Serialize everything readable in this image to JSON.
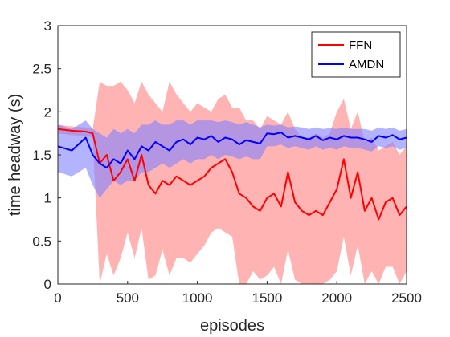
{
  "chart_data": {
    "type": "line",
    "title": "",
    "xlabel": "episodes",
    "ylabel": "time headway (s)",
    "xlim": [
      0,
      2500
    ],
    "ylim": [
      0,
      3
    ],
    "xticks": [
      0,
      500,
      1000,
      1500,
      2000,
      2500
    ],
    "yticks": [
      0,
      0.5,
      1,
      1.5,
      2,
      2.5,
      3
    ],
    "ytick_labels": [
      "0",
      "0.5",
      "1",
      "1.5",
      "2",
      "2.5",
      "3"
    ],
    "grid": false,
    "legend_position": "top-right",
    "series": [
      {
        "name": "FFN",
        "color": "#ff0000",
        "band_color": "#ff9999",
        "x": [
          0,
          100,
          200,
          250,
          300,
          350,
          400,
          450,
          500,
          550,
          600,
          650,
          700,
          750,
          800,
          850,
          900,
          950,
          1000,
          1050,
          1100,
          1150,
          1200,
          1250,
          1300,
          1350,
          1400,
          1450,
          1500,
          1550,
          1600,
          1650,
          1700,
          1750,
          1800,
          1850,
          1900,
          1950,
          2000,
          2050,
          2100,
          2150,
          2200,
          2250,
          2300,
          2350,
          2400,
          2450,
          2500
        ],
        "y": [
          1.8,
          1.78,
          1.77,
          1.75,
          1.4,
          1.5,
          1.2,
          1.3,
          1.45,
          1.2,
          1.5,
          1.15,
          1.05,
          1.2,
          1.15,
          1.25,
          1.2,
          1.15,
          1.2,
          1.25,
          1.35,
          1.4,
          1.45,
          1.3,
          1.05,
          1.0,
          0.9,
          0.85,
          1.0,
          1.05,
          0.9,
          1.3,
          0.95,
          0.85,
          0.8,
          0.85,
          0.8,
          0.95,
          1.1,
          1.45,
          1.0,
          1.3,
          0.85,
          1.0,
          0.75,
          0.95,
          1.0,
          0.8,
          0.9
        ],
        "upper": [
          1.85,
          1.83,
          1.82,
          1.8,
          2.35,
          2.3,
          2.3,
          2.35,
          2.25,
          2.1,
          2.35,
          2.2,
          2.1,
          2.0,
          2.35,
          2.2,
          2.1,
          2.0,
          2.1,
          2.05,
          2.0,
          2.15,
          2.2,
          2.05,
          2.05,
          1.9,
          1.9,
          1.8,
          1.95,
          1.9,
          1.85,
          2.0,
          1.8,
          1.7,
          1.7,
          1.75,
          1.7,
          1.75,
          2.0,
          2.15,
          1.8,
          2.0,
          1.65,
          1.7,
          1.55,
          1.6,
          1.65,
          1.5,
          1.6
        ],
        "lower": [
          1.75,
          1.73,
          1.72,
          1.7,
          0.0,
          0.35,
          0.1,
          0.3,
          0.6,
          0.3,
          0.65,
          0.05,
          0.1,
          0.4,
          0.1,
          0.3,
          0.3,
          0.25,
          0.35,
          0.45,
          0.6,
          0.65,
          0.6,
          0.55,
          0.0,
          0.0,
          0.15,
          0.05,
          0.1,
          0.2,
          0.0,
          0.4,
          0.05,
          0.0,
          0.0,
          0.0,
          0.0,
          0.05,
          0.15,
          0.55,
          0.1,
          0.45,
          0.0,
          0.15,
          0.0,
          0.2,
          0.2,
          0.0,
          0.15
        ]
      },
      {
        "name": "AMDN",
        "color": "#0000ff",
        "band_color": "#8080ff",
        "x": [
          0,
          100,
          200,
          250,
          300,
          350,
          400,
          450,
          500,
          550,
          600,
          650,
          700,
          750,
          800,
          850,
          900,
          950,
          1000,
          1050,
          1100,
          1150,
          1200,
          1250,
          1300,
          1350,
          1400,
          1450,
          1500,
          1550,
          1600,
          1650,
          1700,
          1750,
          1800,
          1850,
          1900,
          1950,
          2000,
          2050,
          2100,
          2150,
          2200,
          2250,
          2300,
          2350,
          2400,
          2450,
          2500
        ],
        "y": [
          1.6,
          1.55,
          1.7,
          1.5,
          1.4,
          1.35,
          1.45,
          1.4,
          1.55,
          1.45,
          1.6,
          1.55,
          1.65,
          1.6,
          1.55,
          1.65,
          1.68,
          1.62,
          1.7,
          1.68,
          1.72,
          1.65,
          1.7,
          1.68,
          1.62,
          1.67,
          1.65,
          1.63,
          1.75,
          1.74,
          1.76,
          1.7,
          1.72,
          1.7,
          1.68,
          1.72,
          1.67,
          1.7,
          1.68,
          1.72,
          1.7,
          1.7,
          1.68,
          1.65,
          1.72,
          1.7,
          1.73,
          1.68,
          1.7
        ],
        "upper": [
          1.85,
          1.8,
          1.9,
          1.8,
          1.75,
          1.7,
          1.8,
          1.75,
          1.8,
          1.75,
          1.85,
          1.85,
          1.9,
          1.85,
          1.85,
          1.9,
          1.9,
          1.85,
          1.9,
          1.9,
          1.9,
          1.88,
          1.9,
          1.88,
          1.85,
          1.88,
          1.85,
          1.82,
          1.85,
          1.84,
          1.85,
          1.82,
          1.83,
          1.82,
          1.8,
          1.82,
          1.8,
          1.81,
          1.8,
          1.82,
          1.8,
          1.8,
          1.8,
          1.78,
          1.82,
          1.8,
          1.82,
          1.78,
          1.8
        ],
        "lower": [
          1.3,
          1.25,
          1.35,
          1.15,
          1.0,
          1.1,
          1.2,
          1.15,
          1.2,
          1.2,
          1.3,
          1.3,
          1.35,
          1.4,
          1.35,
          1.4,
          1.45,
          1.4,
          1.45,
          1.45,
          1.5,
          1.45,
          1.5,
          1.48,
          1.45,
          1.48,
          1.45,
          1.45,
          1.6,
          1.6,
          1.62,
          1.58,
          1.6,
          1.58,
          1.56,
          1.6,
          1.56,
          1.58,
          1.56,
          1.6,
          1.58,
          1.58,
          1.56,
          1.54,
          1.6,
          1.58,
          1.6,
          1.56,
          1.58
        ]
      }
    ]
  }
}
